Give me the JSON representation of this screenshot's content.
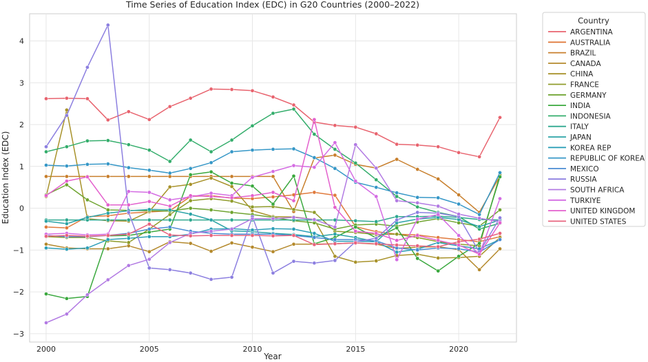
{
  "chart_data": {
    "type": "line",
    "title": "Time Series of Education Index (EDC) in G20 Countries (2000–2022)",
    "xlabel": "Year",
    "ylabel": "Education Index (EDC)",
    "xlim": [
      1999.2,
      2022.8
    ],
    "ylim": [
      -3.2,
      4.65
    ],
    "x_ticks": [
      2000,
      2005,
      2010,
      2015,
      2020
    ],
    "y_ticks": [
      -3,
      -2,
      -1,
      0,
      1,
      2,
      3,
      4
    ],
    "grid": true,
    "legend": {
      "title": "Country",
      "placement": "right"
    },
    "x": [
      2000,
      2001,
      2002,
      2003,
      2004,
      2005,
      2006,
      2007,
      2008,
      2009,
      2010,
      2011,
      2012,
      2013,
      2014,
      2015,
      2016,
      2017,
      2018,
      2019,
      2020,
      2021,
      2022
    ],
    "series": [
      {
        "name": "ARGENTINA",
        "color": "#e8636e",
        "values": [
          2.62,
          2.63,
          2.62,
          2.11,
          2.31,
          2.12,
          2.43,
          2.63,
          2.85,
          2.84,
          2.81,
          2.66,
          2.47,
          2.06,
          1.98,
          1.94,
          1.78,
          1.53,
          1.51,
          1.47,
          1.33,
          1.23,
          2.17
        ]
      },
      {
        "name": "AUSTRALIA",
        "color": "#e07a3c",
        "values": [
          -0.45,
          -0.47,
          -0.2,
          -0.18,
          -0.12,
          -0.09,
          -0.06,
          0.28,
          0.3,
          0.24,
          0.23,
          0.27,
          0.32,
          0.38,
          0.31,
          -0.44,
          -0.56,
          -0.62,
          -0.64,
          -0.7,
          -0.75,
          -0.8,
          -0.68
        ]
      },
      {
        "name": "BRAZIL",
        "color": "#c87f2c",
        "values": [
          0.76,
          0.76,
          0.76,
          0.76,
          0.76,
          0.76,
          0.76,
          0.76,
          0.76,
          0.76,
          0.76,
          0.76,
          -0.08,
          1.2,
          1.27,
          1.05,
          0.96,
          1.17,
          0.93,
          0.7,
          0.32,
          -0.1,
          0.77
        ]
      },
      {
        "name": "CANADA",
        "color": "#b4892c",
        "values": [
          -0.86,
          -0.95,
          -0.97,
          -0.97,
          -0.9,
          -1.04,
          -0.8,
          -0.84,
          -1.03,
          -0.83,
          -0.93,
          -1.04,
          -0.86,
          -0.86,
          -0.85,
          -0.83,
          -0.86,
          -0.96,
          -0.93,
          -0.92,
          -0.99,
          -1.47,
          -0.97
        ]
      },
      {
        "name": "CHINA",
        "color": "#a8922a",
        "values": [
          0.28,
          2.35,
          -0.25,
          -0.3,
          -0.31,
          -0.08,
          0.51,
          0.57,
          0.72,
          0.52,
          -0.06,
          -0.2,
          -0.21,
          -0.27,
          -1.15,
          -1.29,
          -1.26,
          -1.13,
          -1.1,
          -1.19,
          -1.18,
          -1.15,
          -0.7
        ]
      },
      {
        "name": "FRANCE",
        "color": "#8f9b2a",
        "values": [
          -0.68,
          -0.7,
          -0.7,
          -0.78,
          -0.82,
          -0.5,
          -0.15,
          0.18,
          0.23,
          0.17,
          0.03,
          0.04,
          -0.03,
          -0.1,
          -0.55,
          -0.58,
          -0.63,
          -0.62,
          -0.7,
          -0.8,
          -0.86,
          -0.9,
          0.8
        ]
      },
      {
        "name": "GERMANY",
        "color": "#6fa430",
        "values": [
          0.32,
          0.56,
          0.2,
          -0.04,
          -0.05,
          -0.06,
          -0.07,
          0.0,
          -0.04,
          -0.1,
          -0.15,
          -0.22,
          -0.3,
          -0.35,
          -0.5,
          -0.4,
          -0.38,
          -0.43,
          -0.33,
          -0.25,
          -0.35,
          -0.43,
          -0.04
        ]
      },
      {
        "name": "INDIA",
        "color": "#3aa83e",
        "values": [
          -2.05,
          -2.16,
          -2.11,
          -0.66,
          -0.65,
          -0.57,
          -0.5,
          0.8,
          0.87,
          0.6,
          0.53,
          0.1,
          0.77,
          -0.85,
          -0.7,
          -0.45,
          -0.71,
          -0.47,
          -1.2,
          -1.5,
          -1.15,
          -0.84,
          0.75
        ]
      },
      {
        "name": "INDONESIA",
        "color": "#33ad6b",
        "values": [
          1.35,
          1.47,
          1.61,
          1.62,
          1.52,
          1.39,
          1.12,
          1.63,
          1.35,
          1.63,
          1.97,
          2.27,
          2.37,
          1.77,
          1.41,
          1.08,
          0.68,
          0.28,
          0.03,
          -0.1,
          -0.2,
          -0.5,
          -0.36
        ]
      },
      {
        "name": "ITALY",
        "color": "#2ea88f",
        "values": [
          -0.28,
          -0.28,
          -0.28,
          -0.28,
          -0.28,
          -0.28,
          -0.28,
          -0.28,
          -0.28,
          -0.28,
          -0.28,
          -0.28,
          -0.28,
          -0.28,
          -0.28,
          -0.3,
          -0.32,
          -0.2,
          -0.2,
          -0.19,
          -0.22,
          -0.27,
          -0.28
        ]
      },
      {
        "name": "JAPAN",
        "color": "#2aa3a6",
        "values": [
          -0.31,
          -0.37,
          -0.22,
          -0.12,
          -0.06,
          -0.03,
          -0.04,
          -0.14,
          -0.28,
          -0.54,
          -0.56,
          -0.6,
          -0.63,
          -0.68,
          -0.62,
          -0.7,
          -0.8,
          -0.35,
          -0.26,
          -0.22,
          -0.27,
          -0.44,
          -0.28
        ]
      },
      {
        "name": "KOREA REP",
        "color": "#2d9fb8",
        "values": [
          -0.95,
          -0.98,
          -0.95,
          -0.75,
          -0.72,
          -0.68,
          -0.68,
          -0.62,
          -0.5,
          -0.49,
          -0.52,
          -0.49,
          -0.5,
          -0.6,
          -0.79,
          -0.79,
          -0.8,
          -1.05,
          -0.98,
          -0.82,
          -0.9,
          -0.97,
          -0.75
        ]
      },
      {
        "name": "REPUBLIC OF KOREA",
        "color": "#3597c7",
        "values": [
          1.03,
          1.01,
          1.05,
          1.06,
          0.97,
          0.91,
          0.84,
          0.95,
          1.09,
          1.35,
          1.39,
          1.41,
          1.42,
          1.21,
          0.95,
          0.62,
          0.5,
          0.37,
          0.26,
          0.25,
          0.1,
          -0.15,
          0.85
        ]
      },
      {
        "name": "MEXICO",
        "color": "#4a8cd3",
        "values": [
          -0.65,
          -0.68,
          -0.68,
          -0.65,
          -0.6,
          -0.5,
          -0.45,
          -0.55,
          -0.6,
          -0.62,
          -0.62,
          -0.62,
          -0.65,
          -0.7,
          -0.75,
          -0.75,
          -0.78,
          -0.95,
          -1.0,
          -0.95,
          -0.97,
          -1.05,
          -0.75
        ]
      },
      {
        "name": "RUSSIA",
        "color": "#8c7fe0",
        "values": [
          1.47,
          2.22,
          3.37,
          4.38,
          -0.1,
          -1.43,
          -1.47,
          -1.55,
          -1.7,
          -1.65,
          -0.2,
          -1.55,
          -1.27,
          -1.31,
          -1.25,
          -0.8,
          -0.72,
          -0.28,
          -0.1,
          -0.12,
          -0.2,
          -1.05,
          -0.23
        ]
      },
      {
        "name": "SOUTH AFRICA",
        "color": "#b27ae3",
        "values": [
          -2.74,
          -2.53,
          -2.07,
          -1.71,
          -1.37,
          -1.22,
          -0.82,
          -0.6,
          -0.55,
          -0.5,
          -0.25,
          -0.25,
          -0.22,
          -0.27,
          -0.45,
          1.52,
          0.96,
          0.18,
          0.13,
          0.05,
          -0.14,
          -0.24,
          -0.32
        ]
      },
      {
        "name": "TURKIYE",
        "color": "#d46ce3",
        "values": [
          -0.62,
          -0.6,
          -0.64,
          -0.62,
          0.4,
          0.38,
          0.2,
          0.27,
          0.36,
          0.3,
          0.74,
          0.88,
          1.02,
          0.98,
          1.57,
          0.65,
          0.28,
          -1.23,
          -0.26,
          -0.15,
          -0.65,
          -1.1,
          0.23
        ]
      },
      {
        "name": "UNITED KINGDOM",
        "color": "#e360cd",
        "values": [
          0.3,
          0.65,
          0.75,
          0.08,
          0.08,
          0.16,
          0.05,
          0.3,
          0.28,
          0.25,
          0.3,
          0.38,
          0.18,
          2.12,
          0.02,
          -0.55,
          -0.6,
          -0.77,
          -0.65,
          -0.77,
          -0.88,
          -1.1,
          -0.35
        ]
      },
      {
        "name": "UNITED STATES",
        "color": "#e8637e",
        "values": [
          -0.67,
          -0.65,
          -0.67,
          -0.65,
          -0.62,
          -0.38,
          -0.64,
          -0.66,
          -0.65,
          -0.65,
          -0.65,
          -0.66,
          -0.65,
          -0.87,
          -0.85,
          -0.83,
          -0.85,
          -0.88,
          -0.9,
          -0.92,
          -0.8,
          -0.74,
          -0.6
        ]
      }
    ]
  }
}
